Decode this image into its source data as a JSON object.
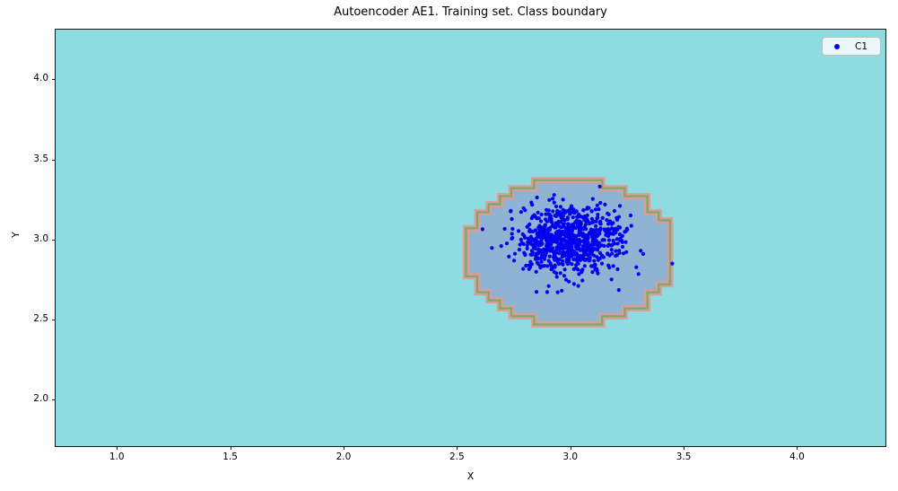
{
  "chart_data": {
    "type": "scatter",
    "title": "Autoencoder AE1. Training set. Class boundary",
    "xlabel": "X",
    "ylabel": "Y",
    "xlim": [
      0.73,
      4.39
    ],
    "ylim": [
      1.71,
      4.31
    ],
    "xticks": [
      {
        "v": 1.0,
        "label": "1.0"
      },
      {
        "v": 1.5,
        "label": "1.5"
      },
      {
        "v": 2.0,
        "label": "2.0"
      },
      {
        "v": 2.5,
        "label": "2.5"
      },
      {
        "v": 3.0,
        "label": "3.0"
      },
      {
        "v": 3.5,
        "label": "3.5"
      },
      {
        "v": 4.0,
        "label": "4.0"
      }
    ],
    "yticks": [
      {
        "v": 2.0,
        "label": "2.0"
      },
      {
        "v": 2.5,
        "label": "2.5"
      },
      {
        "v": 3.0,
        "label": "3.0"
      },
      {
        "v": 3.5,
        "label": "3.5"
      },
      {
        "v": 4.0,
        "label": "4.0"
      }
    ],
    "grid": false,
    "legend": {
      "position": "upper right",
      "entries": [
        {
          "label": "C1",
          "marker": "dot",
          "color": "#0202ee"
        }
      ]
    },
    "series": [
      {
        "name": "C1",
        "marker": "dot",
        "color": "#0202ee",
        "marker_radius_px": 2.1,
        "cluster": {
          "center": [
            2.99,
            3.0
          ],
          "std": [
            0.115,
            0.105
          ],
          "n": 820,
          "seed": 42
        },
        "extra_points": [
          [
            3.13,
            3.33
          ],
          [
            3.45,
            2.85
          ]
        ]
      }
    ],
    "decision_boundary": {
      "shape": "quantized-ellipse",
      "center": [
        3.0,
        2.92
      ],
      "rx": 0.46,
      "ry": 0.45,
      "grid_step": 0.05,
      "inside_color": "#8fb3d3",
      "outside_color": "#8edce1",
      "contour_outer_color": "#dd9c9c",
      "contour_inner_color": "#7fa96a"
    }
  },
  "styles": {
    "frame_color": "#141414",
    "text_color": "#000000",
    "legend_bg": "#fbfdfd",
    "legend_border": "#bdbdbd"
  }
}
